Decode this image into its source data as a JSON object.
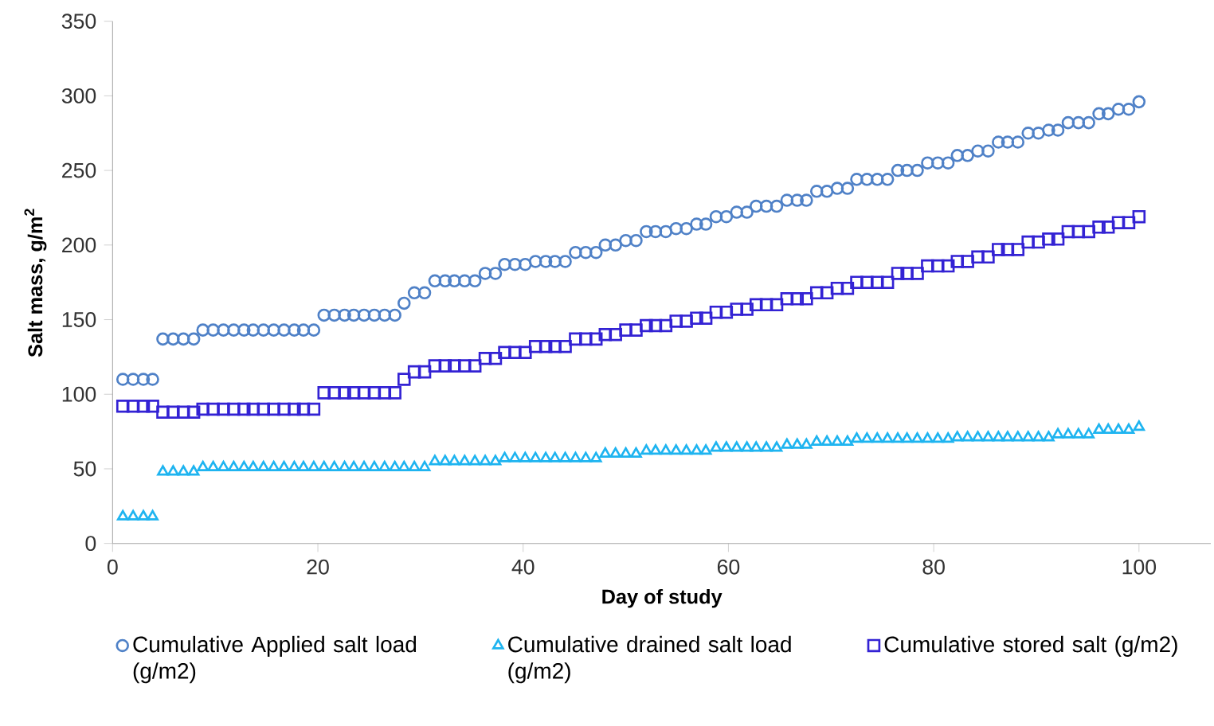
{
  "chart_data": {
    "type": "scatter",
    "xlabel": "Day of study",
    "ylabel": "Salt mass, g/m$^{2}$",
    "x": [
      1.0,
      2.0,
      3.0,
      3.9,
      4.9,
      5.9,
      6.9,
      7.9,
      8.8,
      9.8,
      10.8,
      11.8,
      12.8,
      13.7,
      14.7,
      15.7,
      16.7,
      17.7,
      18.6,
      19.6,
      20.6,
      21.6,
      22.6,
      23.5,
      24.5,
      25.5,
      26.5,
      27.5,
      28.4,
      29.4,
      30.4,
      31.4,
      32.4,
      33.3,
      34.3,
      35.3,
      36.3,
      37.3,
      38.2,
      39.2,
      40.2,
      41.2,
      42.2,
      43.1,
      44.1,
      45.1,
      46.1,
      47.1,
      48.0,
      49.0,
      50.0,
      51.0,
      52.0,
      52.9,
      53.9,
      54.9,
      55.9,
      56.9,
      57.8,
      58.8,
      59.8,
      60.8,
      61.8,
      62.7,
      63.7,
      64.7,
      65.7,
      66.7,
      67.6,
      68.6,
      69.6,
      70.6,
      71.6,
      72.5,
      73.5,
      74.5,
      75.5,
      76.5,
      77.4,
      78.4,
      79.4,
      80.4,
      81.4,
      82.3,
      83.3,
      84.3,
      85.3,
      86.3,
      87.2,
      88.2,
      89.2,
      90.2,
      91.2,
      92.1,
      93.1,
      94.1,
      95.1,
      96.1,
      97.0,
      98.0,
      99.0,
      100.0
    ],
    "series": [
      {
        "name": "Cumulative Applied salt load (g/m2)",
        "color": "#4f81c7",
        "marker": "circle",
        "values": [
          110,
          110,
          110,
          110,
          137,
          137,
          137,
          137,
          143,
          143,
          143,
          143,
          143,
          143,
          143,
          143,
          143,
          143,
          143,
          143,
          153,
          153,
          153,
          153,
          153,
          153,
          153,
          153,
          161,
          168,
          168,
          176,
          176,
          176,
          176,
          176,
          181,
          181,
          187,
          187,
          187,
          189,
          189,
          189,
          189,
          195,
          195,
          195,
          200,
          200,
          203,
          203,
          209,
          209,
          209,
          211,
          211,
          214,
          214,
          219,
          219,
          222,
          222,
          226,
          226,
          226,
          230,
          230,
          230,
          236,
          236,
          238,
          238,
          244,
          244,
          244,
          244,
          250,
          250,
          250,
          255,
          255,
          255,
          260,
          260,
          263,
          263,
          269,
          269,
          269,
          275,
          275,
          277,
          277,
          282,
          282,
          282,
          288,
          288,
          291,
          291,
          296
        ]
      },
      {
        "name": "Cumulative drained salt load (g/m2)",
        "color": "#1eb4f0",
        "marker": "triangle",
        "values": [
          18,
          18,
          18,
          18,
          48,
          48,
          48,
          48,
          51,
          51,
          51,
          51,
          51,
          51,
          51,
          51,
          51,
          51,
          51,
          51,
          51,
          51,
          51,
          51,
          51,
          51,
          51,
          51,
          51,
          51,
          51,
          55,
          55,
          55,
          55,
          55,
          55,
          55,
          57,
          57,
          57,
          57,
          57,
          57,
          57,
          57,
          57,
          57,
          60,
          60,
          60,
          60,
          62,
          62,
          62,
          62,
          62,
          62,
          62,
          64,
          64,
          64,
          64,
          64,
          64,
          64,
          66,
          66,
          66,
          68,
          68,
          68,
          68,
          70,
          70,
          70,
          70,
          70,
          70,
          70,
          70,
          70,
          70,
          71,
          71,
          71,
          71,
          71,
          71,
          71,
          71,
          71,
          71,
          73,
          73,
          73,
          73,
          76,
          76,
          76,
          76,
          78
        ]
      },
      {
        "name": "Cumulative stored salt (g/m2)",
        "color": "#3322d4",
        "marker": "square",
        "values": [
          92,
          92,
          92,
          92,
          88,
          88,
          88,
          88,
          90,
          90,
          90,
          90,
          90,
          90,
          90,
          90,
          90,
          90,
          90,
          90,
          101,
          101,
          101,
          101,
          101,
          101,
          101,
          101,
          110,
          115,
          115,
          119,
          119,
          119,
          119,
          119,
          124,
          124,
          128,
          128,
          128,
          132,
          132,
          132,
          132,
          137,
          137,
          137,
          140,
          140,
          143,
          143,
          146,
          146,
          146,
          149,
          149,
          151,
          151,
          155,
          155,
          157,
          157,
          160,
          160,
          160,
          164,
          164,
          164,
          168,
          168,
          171,
          171,
          175,
          175,
          175,
          175,
          181,
          181,
          181,
          186,
          186,
          186,
          189,
          189,
          192,
          192,
          197,
          197,
          197,
          202,
          202,
          204,
          204,
          209,
          209,
          209,
          212,
          212,
          215,
          215,
          219
        ]
      }
    ],
    "xlim": [
      0,
      107
    ],
    "xticks": [
      0,
      20,
      40,
      60,
      80,
      100
    ],
    "ylim": [
      0,
      350
    ],
    "yticks": [
      0,
      50,
      100,
      150,
      200,
      250,
      300,
      350
    ],
    "grid": false,
    "legend": "bottom"
  }
}
